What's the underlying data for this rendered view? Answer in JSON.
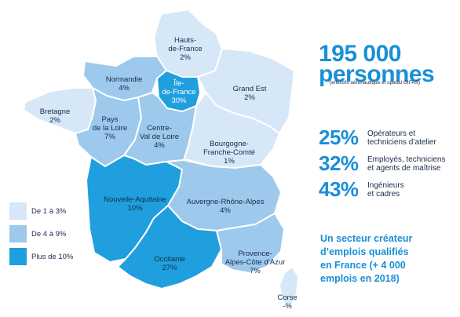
{
  "colors": {
    "light": "#d6e8f7",
    "medium": "#9cc9ec",
    "dark": "#1f9fdd",
    "stat_blue": "#1a8fd6"
  },
  "regions": [
    {
      "id": "hauts-de-france",
      "name": "Hauts-\nde-France",
      "value": "2%",
      "shade": "light"
    },
    {
      "id": "normandie",
      "name": "Normandie",
      "value": "4%",
      "shade": "medium"
    },
    {
      "id": "ile-de-france",
      "name": "Île-\nde-France",
      "value": "30%",
      "shade": "dark"
    },
    {
      "id": "grand-est",
      "name": "Grand Est",
      "value": "2%",
      "shade": "light"
    },
    {
      "id": "bretagne",
      "name": "Bretagne",
      "value": "2%",
      "shade": "light"
    },
    {
      "id": "pays-de-la-loire",
      "name": "Pays\nde la Loire",
      "value": "7%",
      "shade": "medium"
    },
    {
      "id": "centre-val-de-loire",
      "name": "Centre-\nVal de Loire",
      "value": "4%",
      "shade": "medium"
    },
    {
      "id": "bourgogne-franche-comte",
      "name": "Bourgogne-\nFranche-Comté",
      "value": "1%",
      "shade": "light"
    },
    {
      "id": "nouvelle-aquitaine",
      "name": "Nouvelle-Aquitaine",
      "value": "10%",
      "shade": "dark"
    },
    {
      "id": "auvergne-rhone-alpes",
      "name": "Auvergne-Rhône-Alpes",
      "value": "4%",
      "shade": "medium"
    },
    {
      "id": "occitanie",
      "name": "Occitanie",
      "value": "27%",
      "shade": "dark"
    },
    {
      "id": "provence-alpes-cote-azur",
      "name": "Provence-\nAlpes-Côte d’Azur",
      "value": "7%",
      "shade": "medium"
    },
    {
      "id": "corse",
      "name": "Corse",
      "value": "-%",
      "shade": "light"
    }
  ],
  "legend": [
    {
      "label": "De 1 à 3%",
      "shade": "light"
    },
    {
      "label": "De 4 à 9%",
      "shade": "medium"
    },
    {
      "label": "Plus de 10%",
      "shade": "dark"
    }
  ],
  "headline": {
    "line1": "195 000",
    "line2": "personnes",
    "note": "(effectifs aéronautique et spatial GIFAS)"
  },
  "stats": [
    {
      "pct": "25%",
      "desc_line1": "Opérateurs et",
      "desc_line2": "techniciens d’atelier"
    },
    {
      "pct": "32%",
      "desc_line1": "Employés, techniciens",
      "desc_line2": "et agents de maîtrise"
    },
    {
      "pct": "43%",
      "desc_line1": "Ingénieurs",
      "desc_line2": "et cadres"
    }
  ],
  "tagline": {
    "line1": "Un secteur créateur",
    "line2": "d’emplois qualifiés",
    "line3": "en France (+ 4 000",
    "line4": "emplois en 2018)"
  }
}
